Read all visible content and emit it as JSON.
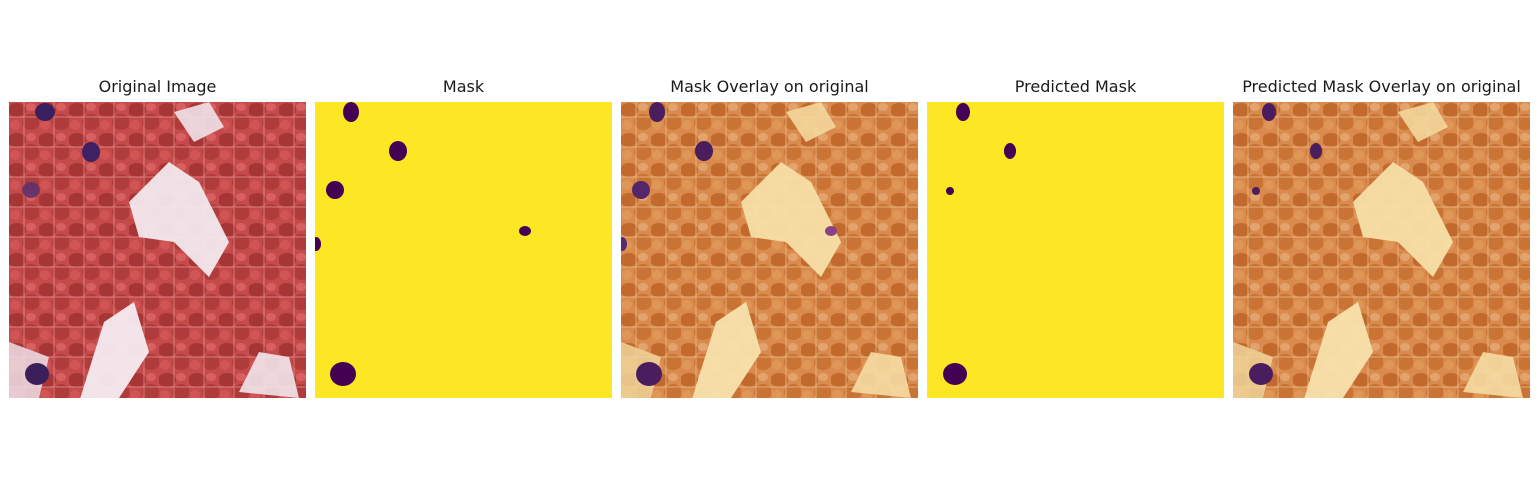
{
  "figure": {
    "panels": [
      {
        "title": "Original Image",
        "kind": "original"
      },
      {
        "title": "Mask",
        "kind": "mask"
      },
      {
        "title": "Mask Overlay on original",
        "kind": "mask_overlay"
      },
      {
        "title": "Predicted Mask",
        "kind": "predicted_mask"
      },
      {
        "title": "Predicted Mask Overlay on original",
        "kind": "predicted_overlay"
      }
    ],
    "colors": {
      "tissue_red": "#b23a3a",
      "tissue_background": "#f2e9ee",
      "mask_foreground": "#fde725",
      "mask_object": "#440154",
      "overlay_tissue": "#d67a3c",
      "overlay_background": "#f7dfa6"
    }
  }
}
